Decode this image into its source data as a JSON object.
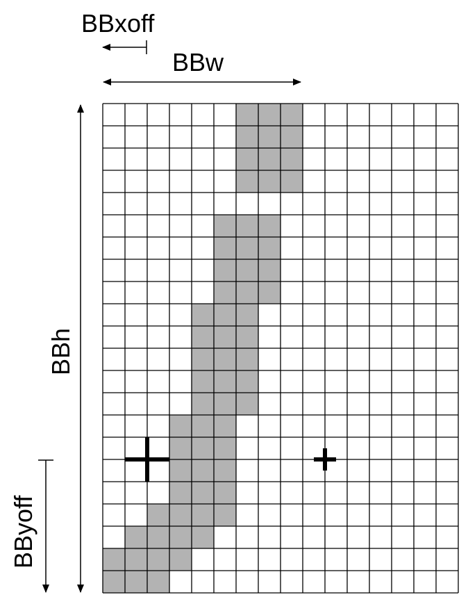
{
  "labels": {
    "bbxoff": "BBxoff",
    "bbw": "BBw",
    "bbh": "BBh",
    "bbyoff": "BByoff"
  },
  "grid": {
    "cols": 16,
    "rows": 22,
    "cell_color": "#ffffff",
    "filled_color": "#b3b3b3",
    "line_color": "#000000",
    "filled_cells": [
      [
        0,
        6
      ],
      [
        0,
        7
      ],
      [
        0,
        8
      ],
      [
        1,
        6
      ],
      [
        1,
        7
      ],
      [
        1,
        8
      ],
      [
        2,
        6
      ],
      [
        2,
        7
      ],
      [
        2,
        8
      ],
      [
        3,
        6
      ],
      [
        3,
        7
      ],
      [
        3,
        8
      ],
      [
        5,
        5
      ],
      [
        5,
        6
      ],
      [
        5,
        7
      ],
      [
        6,
        5
      ],
      [
        6,
        6
      ],
      [
        6,
        7
      ],
      [
        7,
        5
      ],
      [
        7,
        6
      ],
      [
        7,
        7
      ],
      [
        8,
        5
      ],
      [
        8,
        6
      ],
      [
        8,
        7
      ],
      [
        9,
        4
      ],
      [
        9,
        5
      ],
      [
        9,
        6
      ],
      [
        10,
        4
      ],
      [
        10,
        5
      ],
      [
        10,
        6
      ],
      [
        11,
        4
      ],
      [
        11,
        5
      ],
      [
        11,
        6
      ],
      [
        12,
        4
      ],
      [
        12,
        5
      ],
      [
        12,
        6
      ],
      [
        13,
        4
      ],
      [
        13,
        5
      ],
      [
        13,
        6
      ],
      [
        14,
        3
      ],
      [
        14,
        4
      ],
      [
        14,
        5
      ],
      [
        15,
        3
      ],
      [
        15,
        4
      ],
      [
        15,
        5
      ],
      [
        16,
        3
      ],
      [
        16,
        4
      ],
      [
        16,
        5
      ],
      [
        17,
        3
      ],
      [
        17,
        4
      ],
      [
        17,
        5
      ],
      [
        18,
        2
      ],
      [
        18,
        3
      ],
      [
        18,
        4
      ],
      [
        18,
        5
      ],
      [
        19,
        1
      ],
      [
        19,
        2
      ],
      [
        19,
        3
      ],
      [
        19,
        4
      ],
      [
        20,
        0
      ],
      [
        20,
        1
      ],
      [
        20,
        2
      ],
      [
        20,
        3
      ],
      [
        21,
        0
      ],
      [
        21,
        1
      ],
      [
        21,
        2
      ]
    ]
  },
  "markers": {
    "origin_cross": {
      "row_line": 16,
      "col_line": 2,
      "name": "origin-cross-icon"
    },
    "advance_cross": {
      "row_line": 16,
      "col_line": 10,
      "name": "advance-cross-icon"
    }
  }
}
